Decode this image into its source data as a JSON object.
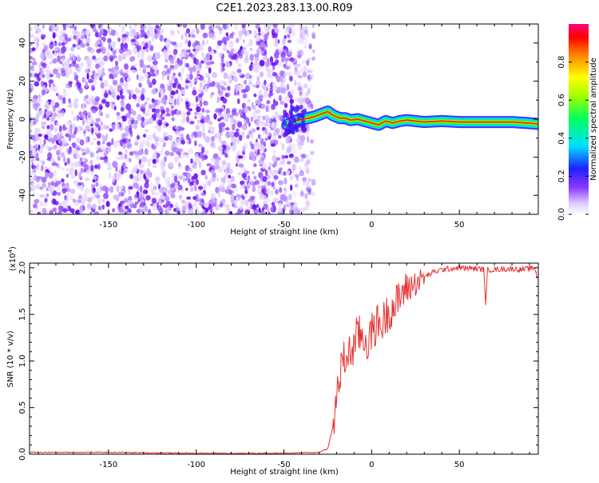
{
  "title": "C2E1.2023.283.13.00.R09",
  "chart_data": [
    {
      "type": "heatmap",
      "xlabel": "Height of straight line (km)",
      "ylabel": "Frequency (Hz)",
      "xlim": [
        -195,
        95
      ],
      "ylim": [
        -50,
        50
      ],
      "xticks": [
        -150,
        -100,
        -50,
        0,
        50
      ],
      "yticks": [
        -40,
        -20,
        0,
        20,
        40
      ],
      "noise_region_x": [
        -195,
        -37
      ],
      "doppler_trace": {
        "x": [
          -48,
          -44,
          -40,
          -36,
          -32,
          -28,
          -25,
          -22,
          -18,
          -15,
          -12,
          -8,
          -4,
          0,
          4,
          8,
          12,
          16,
          20,
          25,
          30,
          40,
          50,
          60,
          70,
          80,
          88,
          95
        ],
        "y": [
          -3,
          -1,
          0,
          0.5,
          1.5,
          3,
          4,
          2,
          0.5,
          0.5,
          -0.5,
          0,
          -1,
          -2,
          -3,
          -1,
          -2,
          -1,
          -0.5,
          -1,
          -1.5,
          -1,
          -1.5,
          -1.5,
          -1.5,
          -1.5,
          -2,
          -2.5
        ]
      },
      "colorbar": {
        "label": "Normalized spectral amplitude",
        "range": [
          0,
          1
        ],
        "ticks": [
          "0.0",
          "0.2",
          "0.4",
          "0.6",
          "0.8"
        ]
      }
    },
    {
      "type": "line",
      "xlabel": "Height of straight line (km)",
      "ylabel": "SNR (10 * v/v)",
      "multiplier_label": "(x10",
      "multiplier_exp": "4",
      "xlim": [
        -195,
        95
      ],
      "ylim": [
        0,
        2.05
      ],
      "xticks": [
        -150,
        -100,
        -50,
        0,
        50
      ],
      "yticks": [
        "0.0",
        "0.5",
        "1.0",
        "1.5",
        "2.0"
      ],
      "series": [
        {
          "color": "#e83030",
          "x": [
            -195,
            -150,
            -100,
            -50,
            -30,
            -25,
            -22,
            -20,
            -18,
            -16,
            -14,
            -12,
            -10,
            -8,
            -5,
            -2,
            0,
            3,
            6,
            10,
            14,
            18,
            22,
            26,
            30,
            35,
            40,
            50,
            60,
            64,
            65,
            66,
            70,
            80,
            85,
            90,
            93,
            95
          ],
          "y": [
            0.02,
            0.02,
            0.01,
            0.01,
            0.02,
            0.06,
            0.3,
            0.6,
            0.85,
            1.0,
            1.05,
            1.1,
            1.15,
            1.3,
            1.25,
            1.2,
            1.3,
            1.4,
            1.4,
            1.55,
            1.6,
            1.75,
            1.8,
            1.85,
            1.9,
            1.95,
            1.98,
            2.0,
            1.99,
            1.98,
            1.6,
            1.98,
            1.98,
            1.99,
            1.98,
            1.99,
            2.0,
            1.85
          ]
        }
      ]
    }
  ]
}
